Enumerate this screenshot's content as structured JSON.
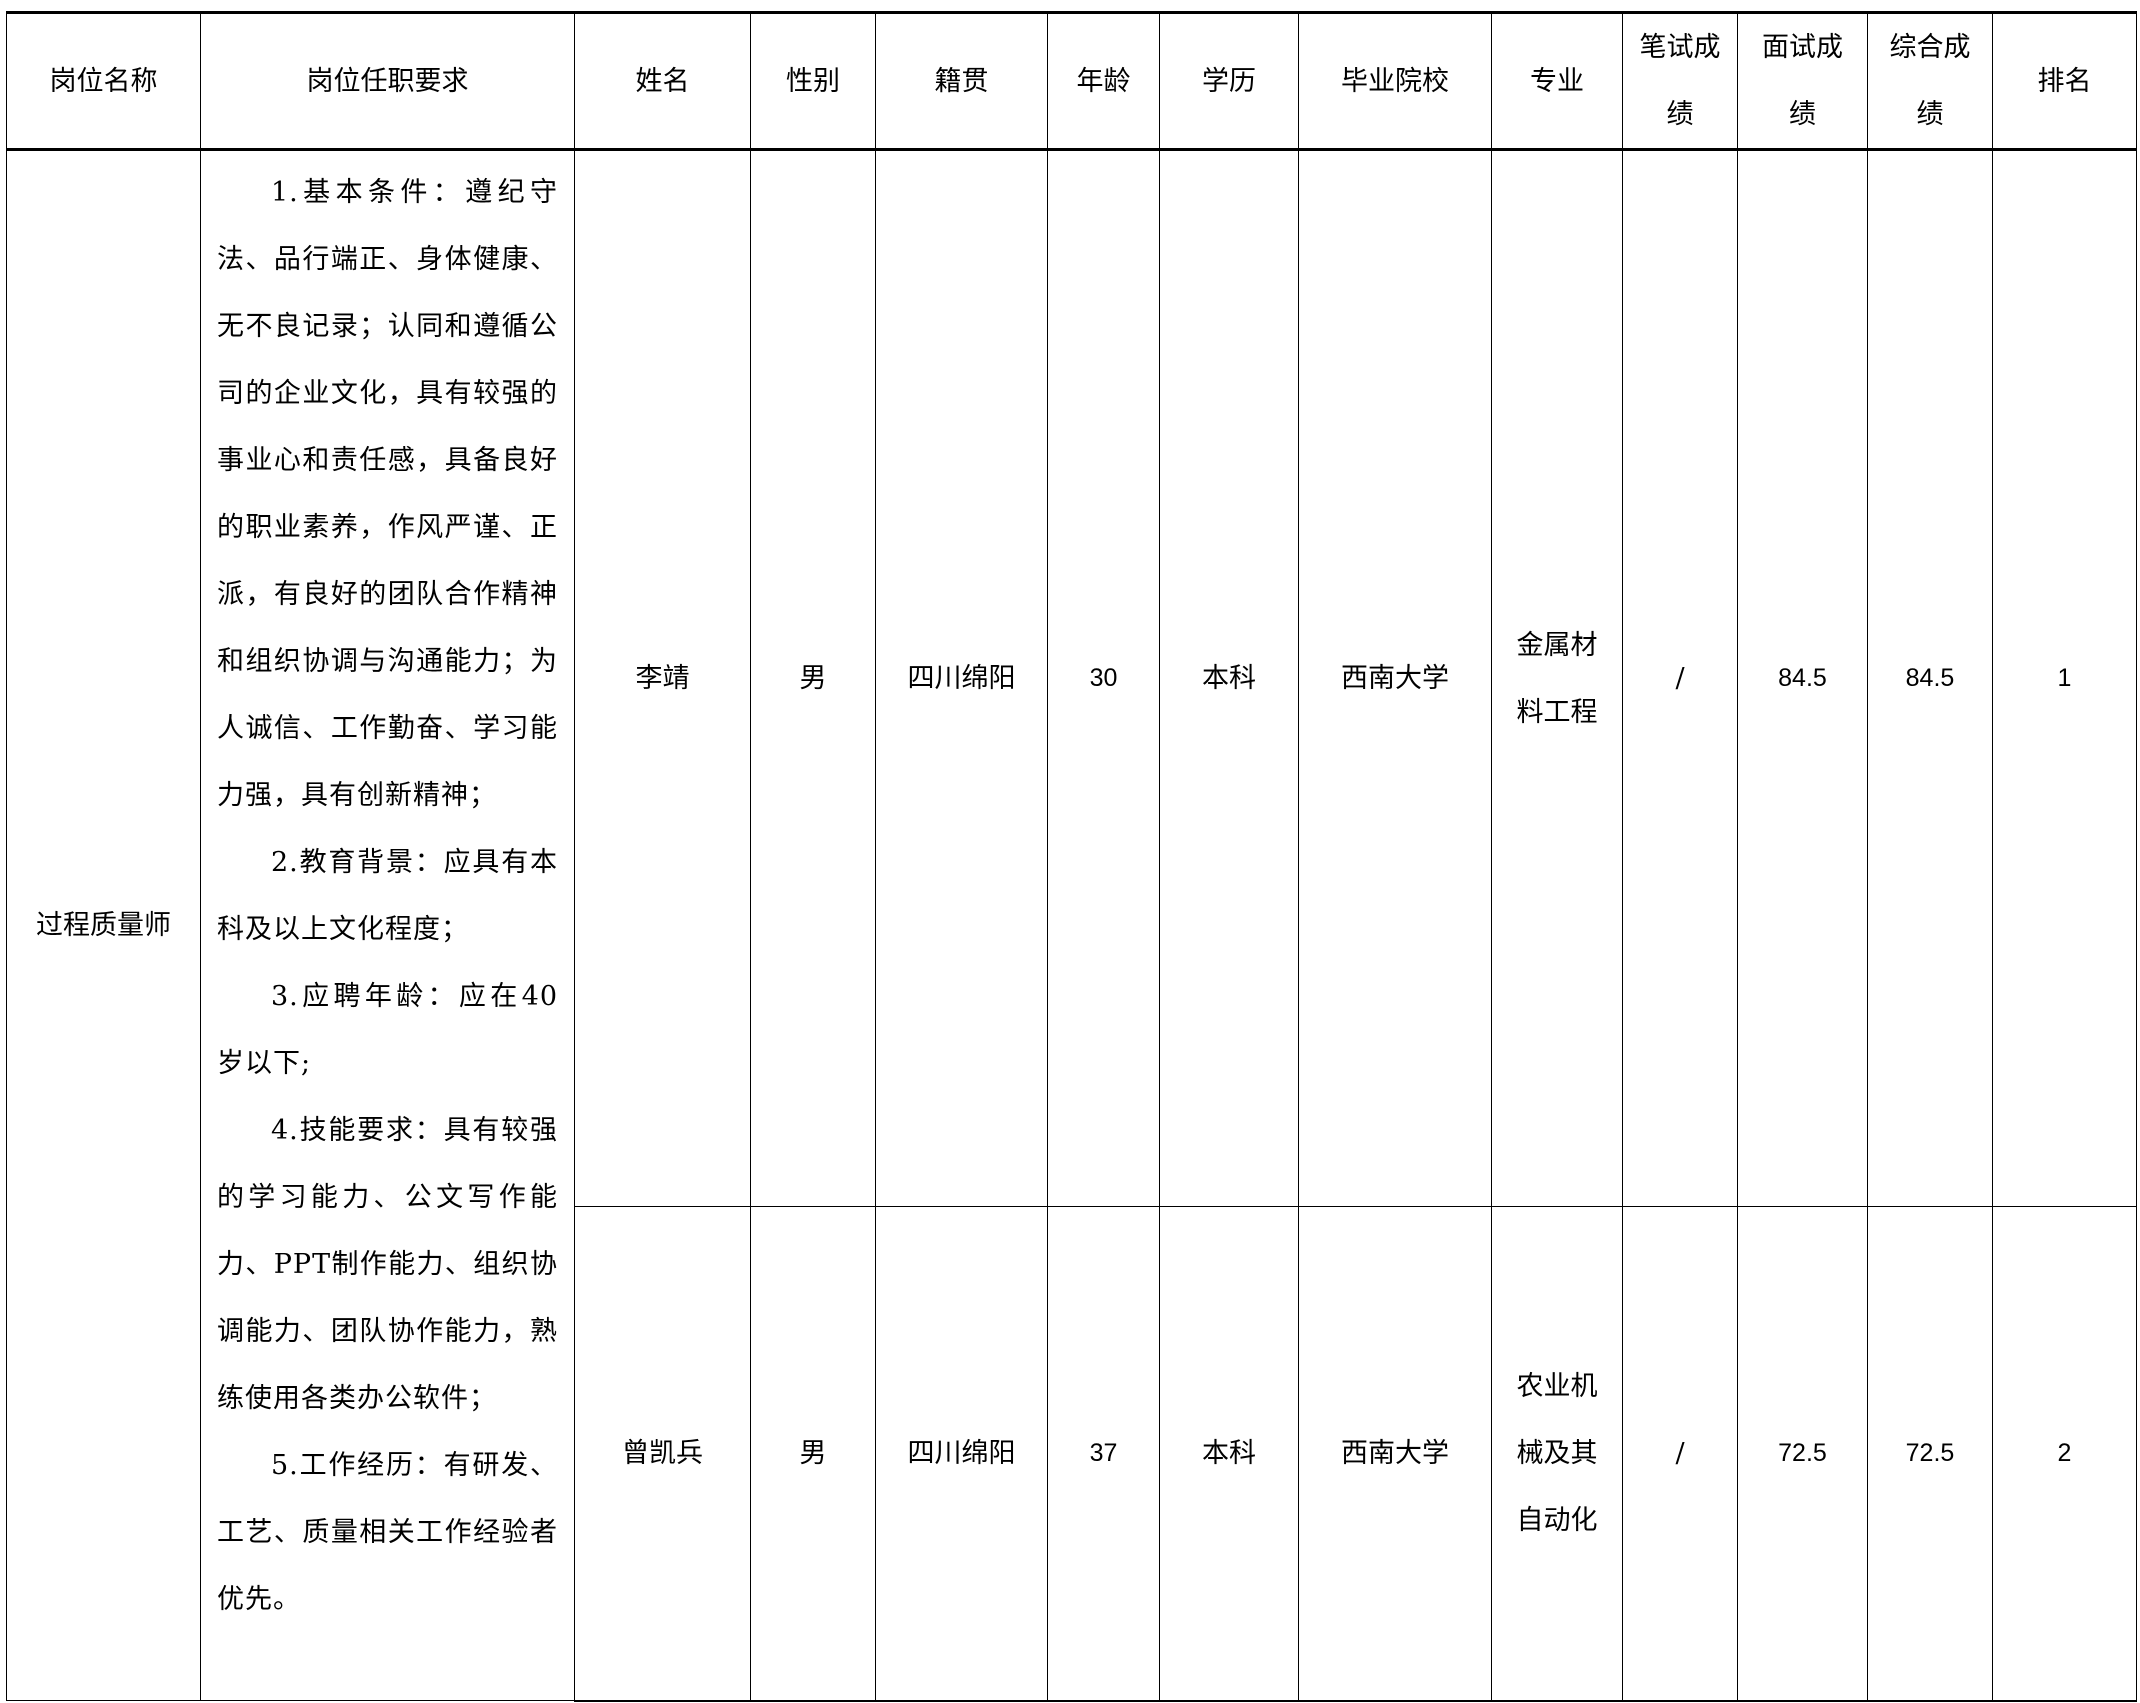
{
  "headers": [
    "岗位名称",
    "岗位任职要求",
    "姓名",
    "性别",
    "籍贯",
    "年龄",
    "学历",
    "毕业院校",
    "专业",
    "笔试成绩",
    "面试成绩",
    "综合成绩",
    "排名"
  ],
  "position": "过程质量师",
  "requirements": [
    "1.基本条件：遵纪守法、品行端正、身体健康、无不良记录；认同和遵循公司的企业文化，具有较强的事业心和责任感，具备良好的职业素养，作风严谨、正派，有良好的团队合作精神和组织协调与沟通能力；为人诚信、工作勤奋、学习能力强，具有创新精神；",
    "2.教育背景：应具有本科及以上文化程度；",
    "3.应聘年龄：应在40岁以下;",
    "4.技能要求：具有较强的学习能力、公文写作能力、PPT制作能力、组织协调能力、团队协作能力，熟练使用各类办公软件；",
    "5.工作经历：有研发、工艺、质量相关工作经验者优先。"
  ],
  "rows": [
    {
      "name": "李靖",
      "gender": "男",
      "origin": "四川绵阳",
      "age": "30",
      "education": "本科",
      "school": "西南大学",
      "major": "金属材料工程",
      "written": "/",
      "interview": "84.5",
      "total": "84.5",
      "rank": "1"
    },
    {
      "name": "曾凯兵",
      "gender": "男",
      "origin": "四川绵阳",
      "age": "37",
      "education": "本科",
      "school": "西南大学",
      "major": "农业机械及其自动化",
      "written": "/",
      "interview": "72.5",
      "total": "72.5",
      "rank": "2"
    }
  ]
}
